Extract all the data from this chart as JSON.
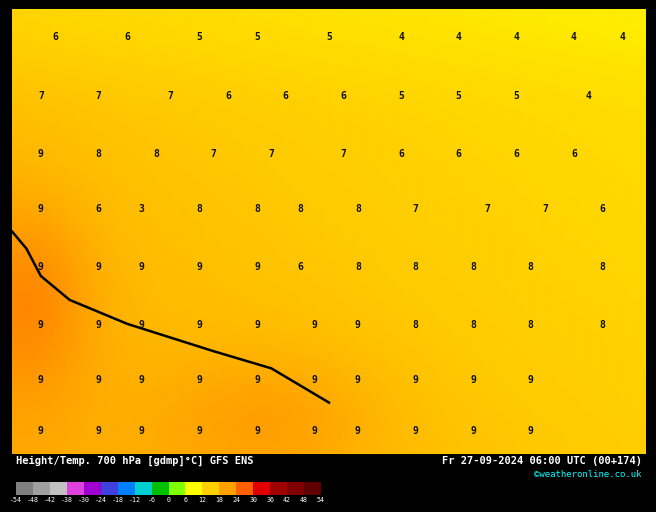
{
  "title_left": "Height/Temp. 700 hPa [gdmp]°C] GFS ENS",
  "title_right": "Fr 27-09-2024 06:00 UTC (00+174)",
  "credit": "©weatheronline.co.uk",
  "colorbar_levels": [
    -54,
    -48,
    -42,
    -38,
    -30,
    -24,
    -18,
    -12,
    -6,
    0,
    6,
    12,
    18,
    24,
    30,
    36,
    42,
    48,
    54
  ],
  "colorbar_colors": [
    "#808080",
    "#a0a0a0",
    "#c0c0c0",
    "#df40df",
    "#9f00cf",
    "#4040df",
    "#0080ff",
    "#00cfcf",
    "#00bf00",
    "#7fff00",
    "#ffff00",
    "#ffcf00",
    "#ff9f00",
    "#ff5f00",
    "#df0000",
    "#9f0000",
    "#7f0000",
    "#5f0000"
  ],
  "colorbar_labels": [
    "-54",
    "-48",
    "-42",
    "-38",
    "-30",
    "-24",
    "-18",
    "-12",
    "-6",
    "0",
    "6",
    "12",
    "18",
    "24",
    "30",
    "36",
    "42",
    "48",
    "54"
  ],
  "fig_width": 6.34,
  "fig_height": 4.9,
  "lon_min": 13.0,
  "lon_max": 35.0,
  "lat_min": 34.0,
  "lat_max": 47.0,
  "bg_yellow": "#ffee00",
  "bg_orange": "#ffaa00",
  "coast_color": "#8888aa",
  "label_color": "#111111",
  "contour_line_color": "#000000",
  "bar_color": "#000000",
  "text_color": "#ffffff",
  "credit_color": "#00ffff",
  "number_labels": [
    [
      14.5,
      46.2,
      "6"
    ],
    [
      17.0,
      46.2,
      "6"
    ],
    [
      19.5,
      46.2,
      "5"
    ],
    [
      21.5,
      46.2,
      "5"
    ],
    [
      24.0,
      46.2,
      "5"
    ],
    [
      26.5,
      46.2,
      "4"
    ],
    [
      28.5,
      46.2,
      "4"
    ],
    [
      30.5,
      46.2,
      "4"
    ],
    [
      32.5,
      46.2,
      "4"
    ],
    [
      34.2,
      46.2,
      "4"
    ],
    [
      14.0,
      44.5,
      "7"
    ],
    [
      16.0,
      44.5,
      "7"
    ],
    [
      18.5,
      44.5,
      "7"
    ],
    [
      20.5,
      44.5,
      "6"
    ],
    [
      22.5,
      44.5,
      "6"
    ],
    [
      24.5,
      44.5,
      "6"
    ],
    [
      26.5,
      44.5,
      "5"
    ],
    [
      28.5,
      44.5,
      "5"
    ],
    [
      30.5,
      44.5,
      "5"
    ],
    [
      33.0,
      44.5,
      "4"
    ],
    [
      14.0,
      42.8,
      "9"
    ],
    [
      16.0,
      42.8,
      "8"
    ],
    [
      18.0,
      42.8,
      "8"
    ],
    [
      20.0,
      42.8,
      "7"
    ],
    [
      22.0,
      42.8,
      "7"
    ],
    [
      24.5,
      42.8,
      "7"
    ],
    [
      26.5,
      42.8,
      "6"
    ],
    [
      28.5,
      42.8,
      "6"
    ],
    [
      30.5,
      42.8,
      "6"
    ],
    [
      32.5,
      42.8,
      "6"
    ],
    [
      14.0,
      41.2,
      "9"
    ],
    [
      16.0,
      41.2,
      "6"
    ],
    [
      17.5,
      41.2,
      "3"
    ],
    [
      19.5,
      41.2,
      "8"
    ],
    [
      21.5,
      41.2,
      "8"
    ],
    [
      23.0,
      41.2,
      "8"
    ],
    [
      25.0,
      41.2,
      "8"
    ],
    [
      27.0,
      41.2,
      "7"
    ],
    [
      29.5,
      41.2,
      "7"
    ],
    [
      31.5,
      41.2,
      "7"
    ],
    [
      33.5,
      41.2,
      "6"
    ],
    [
      14.0,
      39.5,
      "9"
    ],
    [
      16.0,
      39.5,
      "9"
    ],
    [
      17.5,
      39.5,
      "9"
    ],
    [
      19.5,
      39.5,
      "9"
    ],
    [
      21.5,
      39.5,
      "9"
    ],
    [
      23.0,
      39.5,
      "6"
    ],
    [
      25.0,
      39.5,
      "8"
    ],
    [
      27.0,
      39.5,
      "8"
    ],
    [
      29.0,
      39.5,
      "8"
    ],
    [
      31.0,
      39.5,
      "8"
    ],
    [
      33.5,
      39.5,
      "8"
    ],
    [
      14.0,
      37.8,
      "9"
    ],
    [
      16.0,
      37.8,
      "9"
    ],
    [
      17.5,
      37.8,
      "9"
    ],
    [
      19.5,
      37.8,
      "9"
    ],
    [
      21.5,
      37.8,
      "9"
    ],
    [
      23.5,
      37.8,
      "9"
    ],
    [
      25.0,
      37.8,
      "9"
    ],
    [
      27.0,
      37.8,
      "8"
    ],
    [
      29.0,
      37.8,
      "8"
    ],
    [
      31.0,
      37.8,
      "8"
    ],
    [
      33.5,
      37.8,
      "8"
    ],
    [
      14.0,
      36.2,
      "9"
    ],
    [
      16.0,
      36.2,
      "9"
    ],
    [
      17.5,
      36.2,
      "9"
    ],
    [
      19.5,
      36.2,
      "9"
    ],
    [
      21.5,
      36.2,
      "9"
    ],
    [
      23.5,
      36.2,
      "9"
    ],
    [
      25.0,
      36.2,
      "9"
    ],
    [
      27.0,
      36.2,
      "9"
    ],
    [
      29.0,
      36.2,
      "9"
    ],
    [
      31.0,
      36.2,
      "9"
    ],
    [
      14.0,
      34.7,
      "9"
    ],
    [
      16.0,
      34.7,
      "9"
    ],
    [
      17.5,
      34.7,
      "9"
    ],
    [
      19.5,
      34.7,
      "9"
    ],
    [
      21.5,
      34.7,
      "9"
    ],
    [
      23.5,
      34.7,
      "9"
    ],
    [
      25.0,
      34.7,
      "9"
    ],
    [
      27.0,
      34.7,
      "9"
    ],
    [
      29.0,
      34.7,
      "9"
    ],
    [
      31.0,
      34.7,
      "9"
    ]
  ],
  "contour_line": {
    "x": [
      13.0,
      13.5,
      14.0,
      15.0,
      17.0,
      20.0,
      22.0,
      24.0
    ],
    "y": [
      40.5,
      40.0,
      39.2,
      38.5,
      37.8,
      37.0,
      36.5,
      35.5
    ]
  },
  "temp_field_centers": [
    {
      "lon": 13.5,
      "lat": 39.5,
      "value": 26,
      "sigma_lon": 3.0,
      "sigma_lat": 3.0
    },
    {
      "lon": 25.0,
      "lat": 35.0,
      "value": 25,
      "sigma_lon": 8.0,
      "sigma_lat": 3.0
    },
    {
      "lon": 24.0,
      "lat": 47.5,
      "value": 30,
      "sigma_lon": 5.0,
      "sigma_lat": 2.0
    }
  ]
}
